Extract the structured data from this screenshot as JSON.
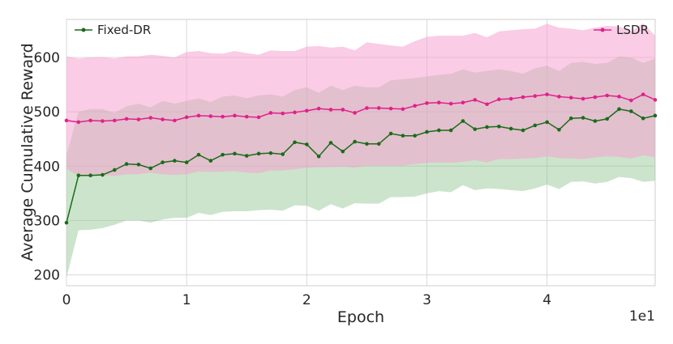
{
  "chart_data": {
    "type": "line",
    "xlabel": "Epoch",
    "ylabel": "Average Cumulative Reward",
    "x_offset_text": "1e1",
    "xlim": [
      0,
      49
    ],
    "ylim": [
      180,
      670
    ],
    "x_ticks": [
      0,
      10,
      20,
      30,
      40
    ],
    "x_tick_labels": [
      "0",
      "1",
      "2",
      "3",
      "4"
    ],
    "y_ticks": [
      200,
      300,
      400,
      500,
      600
    ],
    "y_tick_labels": [
      "200",
      "300",
      "400",
      "500",
      "600"
    ],
    "grid": true,
    "x": [
      0,
      1,
      2,
      3,
      4,
      5,
      6,
      7,
      8,
      9,
      10,
      11,
      12,
      13,
      14,
      15,
      16,
      17,
      18,
      19,
      20,
      21,
      22,
      23,
      24,
      25,
      26,
      27,
      28,
      29,
      30,
      31,
      32,
      33,
      34,
      35,
      36,
      37,
      38,
      39,
      40,
      41,
      42,
      43,
      44,
      45,
      46,
      47,
      48,
      49
    ],
    "series": [
      {
        "name": "Fixed-DR",
        "color": "#1a6b1a",
        "band_color": "#8fc48f",
        "legend_position": "top-left",
        "values": [
          296,
          383,
          383,
          384,
          393,
          404,
          403,
          396,
          407,
          410,
          407,
          421,
          410,
          421,
          423,
          419,
          423,
          424,
          422,
          444,
          440,
          418,
          443,
          427,
          445,
          441,
          441,
          460,
          456,
          456,
          463,
          466,
          466,
          483,
          468,
          472,
          473,
          469,
          466,
          475,
          481,
          467,
          488,
          489,
          483,
          487,
          505,
          501,
          488,
          493
        ],
        "lower": [
          195,
          282,
          283,
          286,
          292,
          300,
          300,
          296,
          302,
          305,
          305,
          314,
          310,
          316,
          317,
          317,
          319,
          320,
          318,
          328,
          327,
          318,
          330,
          322,
          332,
          331,
          331,
          343,
          343,
          344,
          350,
          354,
          352,
          365,
          356,
          359,
          358,
          356,
          354,
          359,
          366,
          358,
          371,
          372,
          368,
          371,
          380,
          378,
          371,
          373
        ],
        "upper": [
          420,
          500,
          505,
          505,
          498,
          510,
          515,
          508,
          520,
          515,
          520,
          525,
          518,
          528,
          530,
          525,
          530,
          532,
          528,
          540,
          545,
          535,
          548,
          540,
          548,
          545,
          545,
          558,
          560,
          562,
          565,
          568,
          570,
          578,
          572,
          575,
          578,
          575,
          570,
          580,
          585,
          575,
          590,
          592,
          588,
          590,
          602,
          600,
          590,
          598
        ]
      },
      {
        "name": "LSDR",
        "color": "#e0218a",
        "band_color": "#f5a3cf",
        "legend_position": "top-right",
        "values": [
          484,
          481,
          484,
          483,
          484,
          487,
          486,
          489,
          486,
          484,
          490,
          493,
          492,
          491,
          493,
          491,
          490,
          498,
          497,
          499,
          502,
          506,
          504,
          504,
          498,
          507,
          507,
          506,
          505,
          511,
          516,
          517,
          515,
          517,
          522,
          514,
          523,
          524,
          527,
          529,
          532,
          528,
          526,
          524,
          527,
          530,
          528,
          521,
          532,
          522
        ],
        "lower": [
          395,
          382,
          383,
          383,
          382,
          385,
          385,
          388,
          385,
          384,
          385,
          390,
          389,
          390,
          391,
          388,
          387,
          392,
          392,
          394,
          397,
          398,
          398,
          399,
          397,
          401,
          401,
          401,
          401,
          404,
          406,
          407,
          406,
          408,
          411,
          407,
          413,
          413,
          414,
          415,
          418,
          415,
          414,
          413,
          416,
          418,
          417,
          414,
          420,
          416
        ],
        "upper": [
          602,
          598,
          600,
          601,
          598,
          602,
          602,
          605,
          603,
          600,
          610,
          612,
          608,
          607,
          612,
          608,
          605,
          613,
          612,
          612,
          620,
          621,
          618,
          620,
          613,
          628,
          625,
          622,
          620,
          630,
          638,
          640,
          640,
          640,
          645,
          637,
          648,
          650,
          652,
          653,
          662,
          655,
          653,
          650,
          655,
          658,
          657,
          648,
          663,
          640
        ]
      }
    ]
  }
}
